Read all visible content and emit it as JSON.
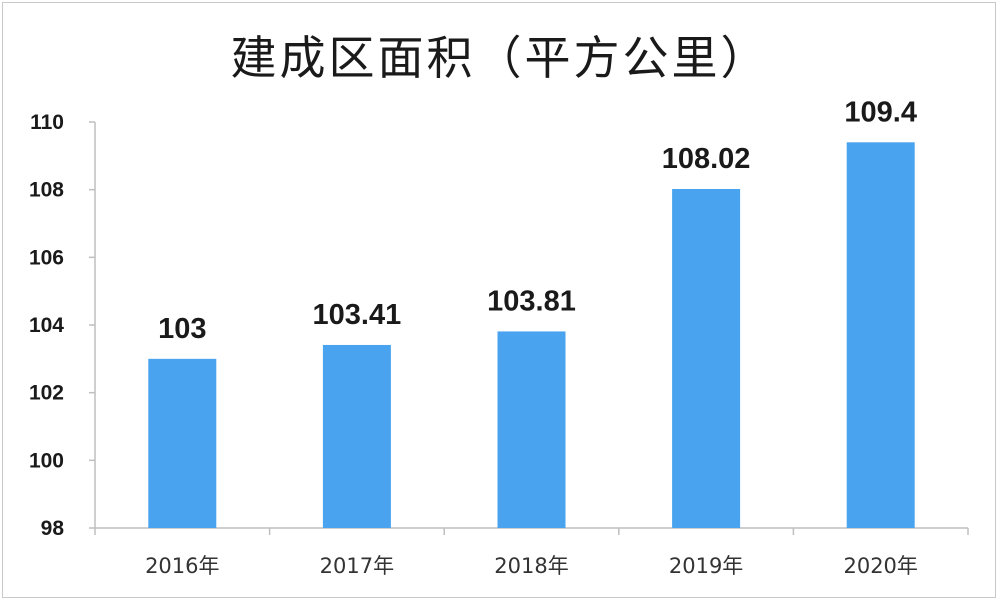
{
  "chart_data": {
    "type": "bar",
    "title": "建成区面积（平方公里）",
    "xlabel": "",
    "ylabel": "",
    "categories": [
      "2016年",
      "2017年",
      "2018年",
      "2019年",
      "2020年"
    ],
    "values": [
      103,
      103.41,
      103.81,
      108.02,
      109.4
    ],
    "data_labels": [
      "103",
      "103.41",
      "103.81",
      "108.02",
      "109.4"
    ],
    "ylim": [
      98,
      110
    ],
    "yticks": [
      "98",
      "100",
      "102",
      "104",
      "106",
      "108",
      "110"
    ],
    "ytick_values": [
      98,
      100,
      102,
      104,
      106,
      108,
      110
    ],
    "grid": false,
    "legend": "none",
    "bar_color": "#4aa3ef",
    "axis_color": "#bfbfbf"
  }
}
